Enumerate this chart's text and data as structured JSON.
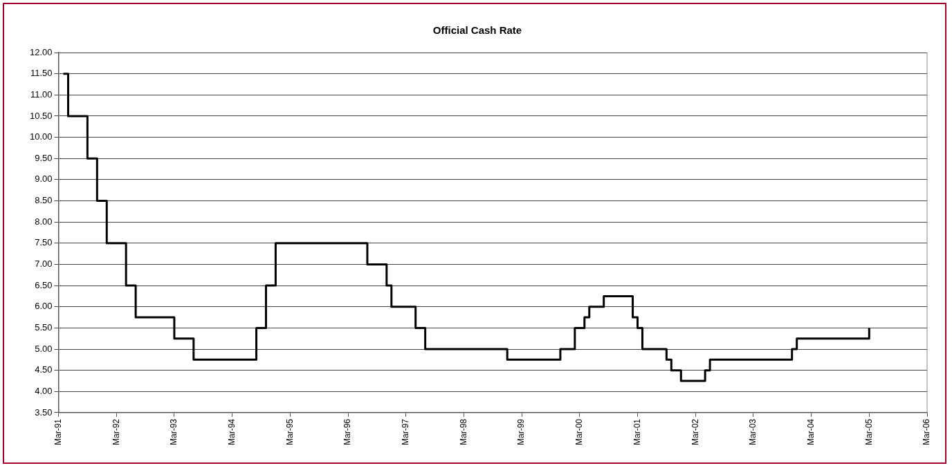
{
  "chart_data": {
    "type": "step",
    "title": "Official Cash Rate",
    "x": [
      "1991-04",
      "1991-05",
      "1991-09",
      "1991-11",
      "1992-01",
      "1992-05",
      "1992-07",
      "1993-03",
      "1993-07",
      "1994-08",
      "1994-10",
      "1994-12",
      "1996-07",
      "1996-11",
      "1996-12",
      "1997-05",
      "1997-07",
      "1998-12",
      "1999-11",
      "2000-02",
      "2000-04",
      "2000-05",
      "2000-08",
      "2001-02",
      "2001-03",
      "2001-04",
      "2001-09",
      "2001-10",
      "2001-12",
      "2002-05",
      "2002-06",
      "2003-11",
      "2003-12",
      "2005-03"
    ],
    "series": [
      {
        "color": "#000000",
        "values": [
          11.5,
          10.5,
          9.5,
          8.5,
          7.5,
          6.5,
          5.75,
          5.25,
          4.75,
          5.5,
          6.5,
          7.5,
          7.0,
          6.5,
          6.0,
          5.5,
          5.0,
          4.75,
          5.0,
          5.5,
          5.75,
          6.0,
          6.25,
          5.75,
          5.5,
          5.0,
          4.75,
          4.5,
          4.25,
          4.5,
          4.75,
          5.0,
          5.25,
          5.5
        ]
      }
    ],
    "xlim": [
      "1991-03",
      "2006-03"
    ],
    "xticks": [
      {
        "value": "1991-03",
        "label": "Mar-91"
      },
      {
        "value": "1992-03",
        "label": "Mar-92"
      },
      {
        "value": "1993-03",
        "label": "Mar-93"
      },
      {
        "value": "1994-03",
        "label": "Mar-94"
      },
      {
        "value": "1995-03",
        "label": "Mar-95"
      },
      {
        "value": "1996-03",
        "label": "Mar-96"
      },
      {
        "value": "1997-03",
        "label": "Mar-97"
      },
      {
        "value": "1998-03",
        "label": "Mar-98"
      },
      {
        "value": "1999-03",
        "label": "Mar-99"
      },
      {
        "value": "2000-03",
        "label": "Mar-00"
      },
      {
        "value": "2001-03",
        "label": "Mar-01"
      },
      {
        "value": "2002-03",
        "label": "Mar-02"
      },
      {
        "value": "2003-03",
        "label": "Mar-03"
      },
      {
        "value": "2004-03",
        "label": "Mar-04"
      },
      {
        "value": "2005-03",
        "label": "Mar-05"
      },
      {
        "value": "2006-03",
        "label": "Mar-06"
      }
    ],
    "ylim": [
      3.5,
      12
    ],
    "yticks": [
      {
        "value": 3.5,
        "label": "3.50"
      },
      {
        "value": 4,
        "label": "4.00"
      },
      {
        "value": 4.5,
        "label": "4.50"
      },
      {
        "value": 5,
        "label": "5.00"
      },
      {
        "value": 5.5,
        "label": "5.50"
      },
      {
        "value": 6,
        "label": "6.00"
      },
      {
        "value": 6.5,
        "label": "6.50"
      },
      {
        "value": 7,
        "label": "7.00"
      },
      {
        "value": 7.5,
        "label": "7.50"
      },
      {
        "value": 8,
        "label": "8.00"
      },
      {
        "value": 8.5,
        "label": "8.50"
      },
      {
        "value": 9,
        "label": "9.00"
      },
      {
        "value": 9.5,
        "label": "9.50"
      },
      {
        "value": 10,
        "label": "10.00"
      },
      {
        "value": 10.5,
        "label": "10.50"
      },
      {
        "value": 11,
        "label": "11.00"
      },
      {
        "value": 11.5,
        "label": "11.50"
      },
      {
        "value": 12,
        "label": "12.00"
      }
    ],
    "grid": "y",
    "legend": false,
    "marker": "none",
    "line_style": "solid"
  }
}
